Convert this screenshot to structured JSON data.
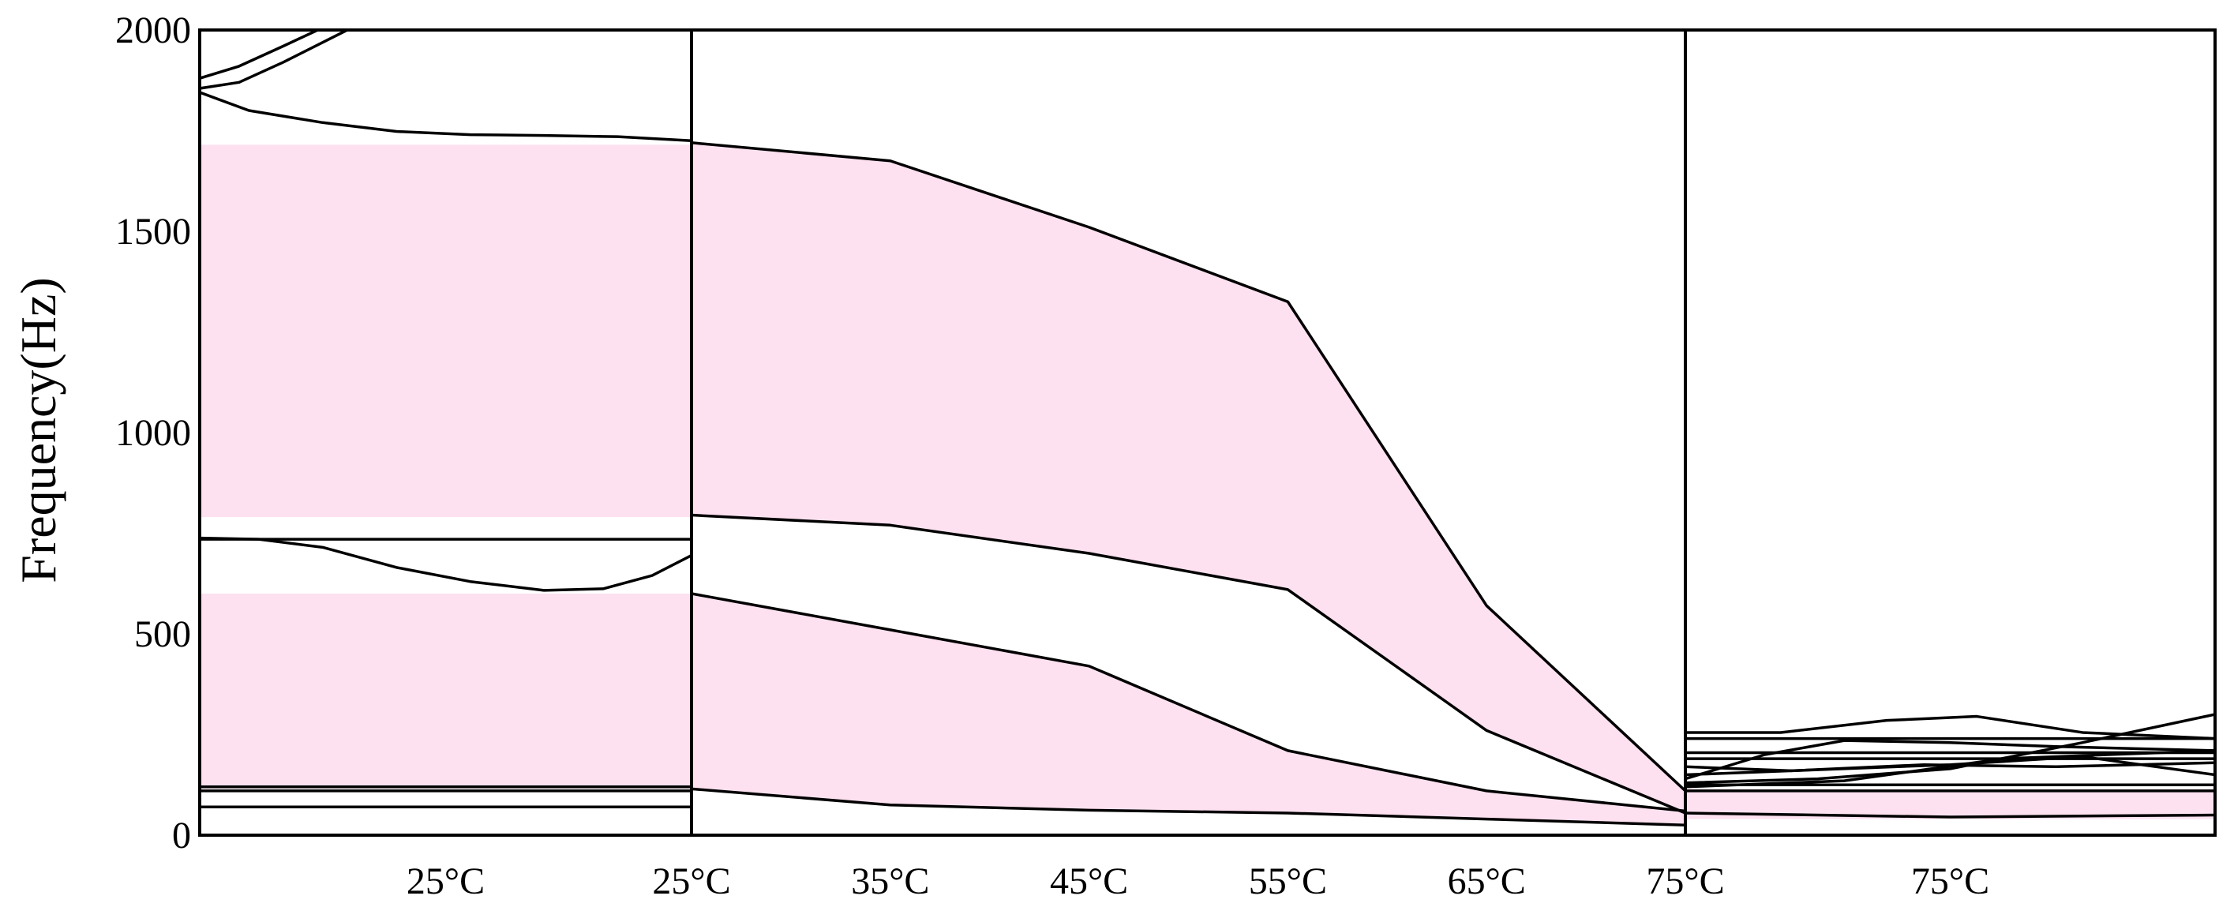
{
  "colors": {
    "band": "#fde1f0",
    "line": "#000000",
    "background": "#ffffff"
  },
  "chart_data": {
    "type": "line",
    "ylabel": "Frequency(Hz)",
    "ylim": [
      0,
      2000
    ],
    "yticks": [
      "0",
      "500",
      "1000",
      "1500",
      "2000"
    ],
    "ytick_values": [
      0,
      500,
      1000,
      1500,
      2000
    ],
    "panels": [
      {
        "id": "left",
        "xlim": [
          0,
          1
        ],
        "xticks": [
          {
            "x": 0.5,
            "label": "25°C"
          }
        ],
        "bands": [
          {
            "x": [
              0,
              1
            ],
            "lower": [
              790,
              790
            ],
            "upper": [
              1715,
              1715
            ]
          },
          {
            "x": [
              0,
              1
            ],
            "lower": [
              115,
              115
            ],
            "upper": [
              600,
              600
            ]
          }
        ],
        "curves": [
          {
            "x": [
              0,
              0.08,
              0.17,
              0.24
            ],
            "y": [
              1880,
              1910,
              1960,
              2000
            ]
          },
          {
            "x": [
              0,
              0.08,
              0.17,
              0.3,
              0.45,
              0.6,
              0.75,
              0.88,
              1
            ],
            "y": [
              1855,
              1870,
              1920,
              2000,
              2000,
              2000,
              2000,
              2000,
              2000
            ]
          },
          {
            "x": [
              0,
              0.1,
              0.25,
              0.4,
              0.55,
              0.7,
              0.85,
              1
            ],
            "y": [
              1845,
              1800,
              1770,
              1748,
              1740,
              1738,
              1735,
              1725
            ]
          },
          {
            "x": [
              0,
              1
            ],
            "y": [
              735,
              735
            ]
          },
          {
            "x": [
              0,
              0.12,
              0.25,
              0.4,
              0.55,
              0.7,
              0.82,
              0.92,
              1
            ],
            "y": [
              738,
              735,
              715,
              665,
              630,
              608,
              612,
              645,
              695
            ]
          },
          {
            "x": [
              0,
              1
            ],
            "y": [
              120,
              120
            ]
          },
          {
            "x": [
              0,
              1
            ],
            "y": [
              110,
              110
            ]
          },
          {
            "x": [
              0,
              1
            ],
            "y": [
              70,
              70
            ]
          }
        ]
      },
      {
        "id": "middle",
        "xlim": [
          25,
          75
        ],
        "xticks": [
          {
            "x": 25,
            "label": "25°C"
          },
          {
            "x": 35,
            "label": "35°C"
          },
          {
            "x": 45,
            "label": "45°C"
          },
          {
            "x": 55,
            "label": "55°C"
          },
          {
            "x": 65,
            "label": "65°C"
          },
          {
            "x": 75,
            "label": "75°C"
          }
        ],
        "bands": [
          {
            "x": [
              25,
              35,
              45,
              55,
              65,
              75
            ],
            "lower": [
              795,
              770,
              700,
              610,
              260,
              55
            ],
            "upper": [
              1720,
              1675,
              1510,
              1325,
              570,
              110
            ]
          },
          {
            "x": [
              25,
              35,
              45,
              55,
              65,
              75
            ],
            "lower": [
              115,
              75,
              62,
              55,
              40,
              25
            ],
            "upper": [
              600,
              510,
              420,
              210,
              110,
              60
            ]
          }
        ],
        "curves": [
          {
            "x": [
              25,
              35,
              45,
              55,
              65,
              75
            ],
            "y": [
              1720,
              1675,
              1510,
              1325,
              570,
              110
            ]
          },
          {
            "x": [
              25,
              35,
              45,
              55,
              65,
              75
            ],
            "y": [
              795,
              770,
              700,
              610,
              260,
              55
            ]
          },
          {
            "x": [
              25,
              35,
              45,
              55,
              65,
              75
            ],
            "y": [
              600,
              510,
              420,
              210,
              110,
              60
            ]
          },
          {
            "x": [
              25,
              35,
              45,
              55,
              65,
              75
            ],
            "y": [
              115,
              75,
              62,
              55,
              40,
              25
            ]
          }
        ]
      },
      {
        "id": "right",
        "xlim": [
          0,
          1
        ],
        "xticks": [
          {
            "x": 0.5,
            "label": "75°C"
          }
        ],
        "bands": [
          {
            "x": [
              0,
              1
            ],
            "lower": [
              40,
              40
            ],
            "upper": [
              115,
              115
            ]
          }
        ],
        "curves": [
          {
            "x": [
              0,
              0.18,
              0.38,
              0.55,
              0.75,
              1
            ],
            "y": [
              255,
              255,
              285,
              295,
              255,
              240
            ]
          },
          {
            "x": [
              0,
              1
            ],
            "y": [
              240,
              240
            ]
          },
          {
            "x": [
              0,
              0.15,
              0.3,
              0.5,
              0.7,
              0.85,
              1
            ],
            "y": [
              140,
              200,
              235,
              230,
              220,
              215,
              210
            ]
          },
          {
            "x": [
              0,
              1
            ],
            "y": [
              205,
              205
            ]
          },
          {
            "x": [
              0,
              1
            ],
            "y": [
              190,
              190
            ]
          },
          {
            "x": [
              0,
              0.2,
              0.45,
              0.7,
              1
            ],
            "y": [
              170,
              160,
              175,
              170,
              180
            ]
          },
          {
            "x": [
              0,
              0.25,
              0.5,
              0.75,
              1
            ],
            "y": [
              130,
              140,
              165,
              230,
              300
            ]
          },
          {
            "x": [
              0,
              0.3,
              0.6,
              1
            ],
            "y": [
              120,
              135,
              190,
              210
            ]
          },
          {
            "x": [
              0,
              0.5,
              0.75,
              1
            ],
            "y": [
              150,
              175,
              195,
              150
            ]
          },
          {
            "x": [
              0,
              1
            ],
            "y": [
              125,
              125
            ]
          },
          {
            "x": [
              0,
              1
            ],
            "y": [
              110,
              110
            ]
          },
          {
            "x": [
              0,
              0.5,
              1
            ],
            "y": [
              55,
              45,
              50
            ]
          }
        ]
      }
    ]
  }
}
